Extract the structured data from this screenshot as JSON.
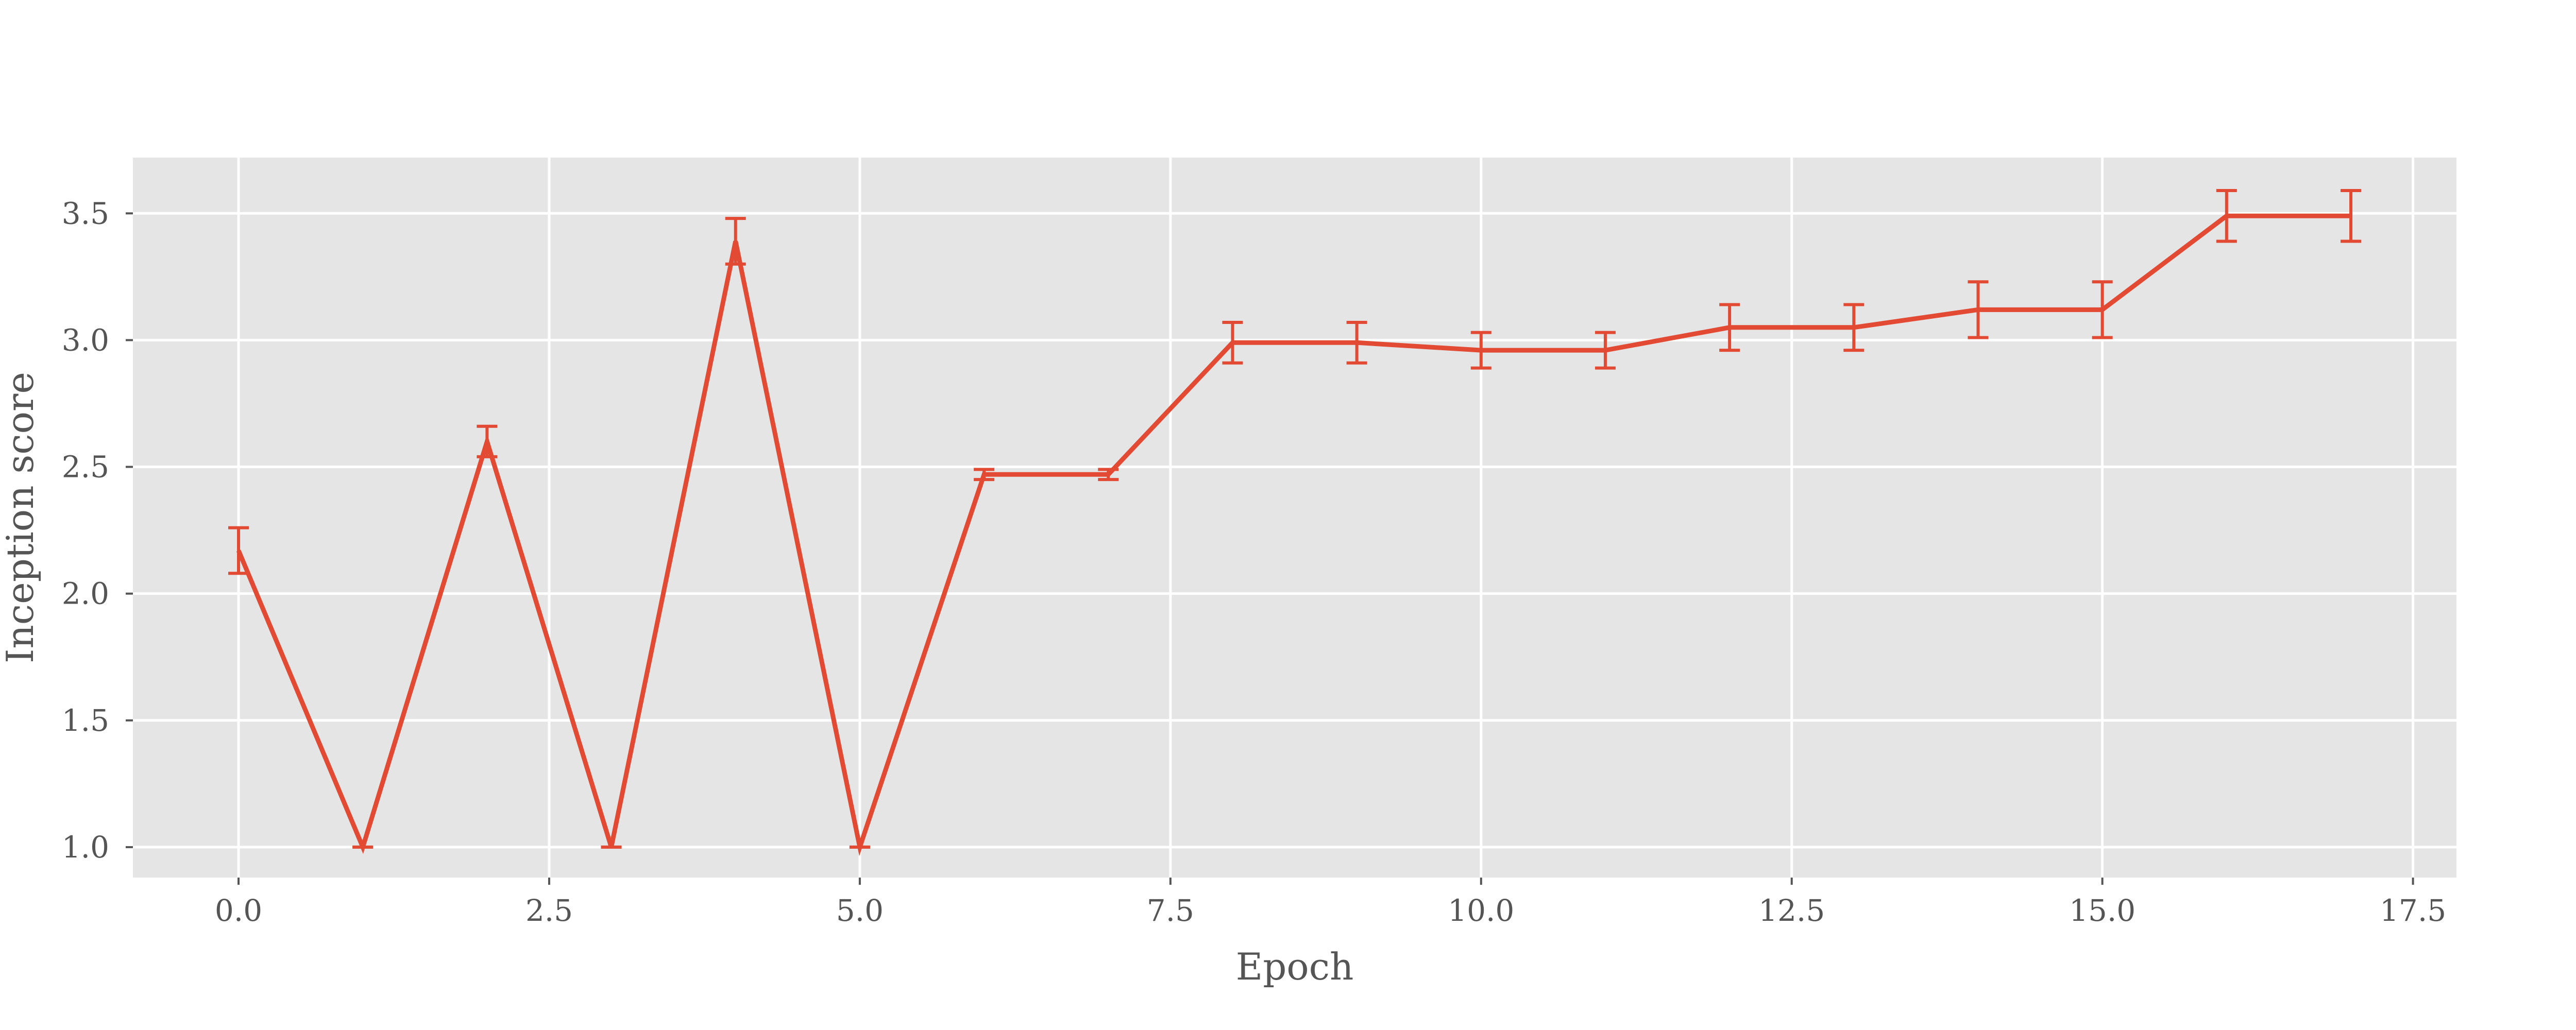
{
  "chart_data": {
    "type": "line",
    "title": "",
    "xlabel": "Epoch",
    "ylabel": "Inception score",
    "xlim": [
      -0.85,
      17.85
    ],
    "ylim": [
      0.88,
      3.72
    ],
    "grid": true,
    "legend": "none",
    "colors": {
      "background": "#e5e5e5",
      "grid": "#ffffff",
      "line": "#e24a33",
      "tick": "#555555"
    },
    "x_ticks": [
      0.0,
      2.5,
      5.0,
      7.5,
      10.0,
      12.5,
      15.0,
      17.5
    ],
    "x_tick_labels": [
      "0.0",
      "2.5",
      "5.0",
      "7.5",
      "10.0",
      "12.5",
      "15.0",
      "17.5"
    ],
    "y_ticks": [
      1.0,
      1.5,
      2.0,
      2.5,
      3.0,
      3.5
    ],
    "y_tick_labels": [
      "1.0",
      "1.5",
      "2.0",
      "2.5",
      "3.0",
      "3.5"
    ],
    "series": [
      {
        "x": [
          0,
          1,
          2,
          3,
          4,
          5,
          6,
          7,
          8,
          9,
          10,
          11,
          12,
          13,
          14,
          15,
          16,
          17
        ],
        "y": [
          2.17,
          1.0,
          2.6,
          1.0,
          3.39,
          1.0,
          2.47,
          2.47,
          2.99,
          2.99,
          2.96,
          2.96,
          3.05,
          3.05,
          3.12,
          3.12,
          3.49,
          3.49
        ],
        "yerr": [
          0.09,
          0.0,
          0.06,
          0.0,
          0.09,
          0.0,
          0.02,
          0.02,
          0.08,
          0.08,
          0.07,
          0.07,
          0.09,
          0.09,
          0.11,
          0.11,
          0.1,
          0.1
        ]
      }
    ]
  }
}
